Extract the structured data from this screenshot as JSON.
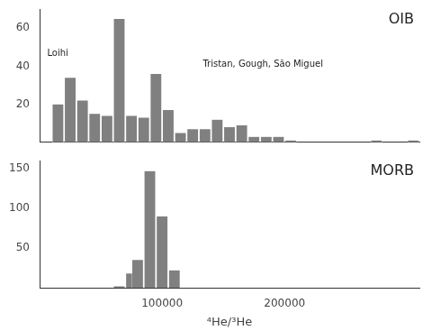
{
  "chart_data": [
    {
      "type": "bar",
      "title": "OIB",
      "annotations": [
        "Loihi",
        "Tristan, Gough, São Miguel"
      ],
      "x": [
        15000,
        25000,
        35000,
        45000,
        55000,
        65000,
        75000,
        85000,
        95000,
        105000,
        115000,
        125000,
        135000,
        145000,
        155000,
        165000,
        175000,
        185000,
        195000,
        205000,
        275000,
        305000
      ],
      "values": [
        20,
        34,
        22,
        15,
        14,
        65,
        14,
        13,
        36,
        17,
        5,
        7,
        7,
        12,
        8,
        9,
        3,
        3,
        3,
        1,
        1,
        1
      ],
      "bin_width": 10000,
      "color": "#808080",
      "xlim": [
        0,
        310000
      ],
      "xticks": [],
      "ylim": [
        0,
        70
      ],
      "yticks": [
        20,
        40,
        60
      ],
      "grid": false,
      "tick_labels": "y"
    },
    {
      "type": "bar",
      "title": "MORB",
      "xlabel": "⁴He/³He",
      "x": [
        65000,
        75000,
        80000,
        90000,
        100000,
        110000
      ],
      "values": [
        2,
        18,
        35,
        147,
        90,
        22
      ],
      "bin_width": 10000,
      "color": "#808080",
      "xlim": [
        0,
        310000
      ],
      "xticks": [
        100000,
        200000
      ],
      "ylim": [
        0,
        160
      ],
      "yticks": [
        50,
        100,
        150
      ],
      "grid": false
    }
  ]
}
